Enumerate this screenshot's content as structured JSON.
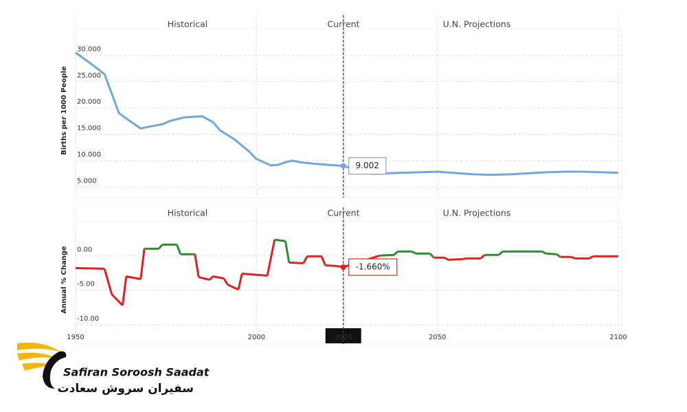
{
  "chart_data": [
    {
      "type": "line",
      "y_label": "Births per 1000 People",
      "sections": [
        "Historical",
        "Current",
        "U.N. Projections"
      ],
      "x": [
        1950,
        1955,
        1958,
        1962,
        1964,
        1968,
        1970,
        1974,
        1976,
        1980,
        1982,
        1985,
        1988,
        1990,
        1994,
        1998,
        2000,
        2004,
        2006,
        2008,
        2010,
        2012,
        2016,
        2020,
        2024,
        2032,
        2040,
        2050,
        2060,
        2065,
        2070,
        2080,
        2085,
        2090,
        2100
      ],
      "series": [
        {
          "name": "Births per 1000 People",
          "color": "#6fa8dc",
          "values": [
            30.5,
            28,
            26.4,
            19,
            18,
            16.1,
            16.4,
            16.9,
            17.5,
            18.2,
            18.3,
            18.4,
            17.3,
            15.7,
            14,
            11.7,
            10.3,
            9.1,
            9.2,
            9.7,
            10,
            9.7,
            9.4,
            9.2,
            9.002,
            7.5,
            7.7,
            7.9,
            7.4,
            7.3,
            7.4,
            7.8,
            7.9,
            7.9,
            7.7
          ]
        }
      ],
      "current_x": 2024,
      "annotation": "9.002",
      "xlim": [
        1950,
        2100
      ],
      "xticks": [
        1950,
        2000,
        2024,
        2050,
        2100
      ],
      "x_tick_labels": false,
      "ylim": [
        4,
        35
      ],
      "yticks": [
        {
          "value": 5,
          "label": "5.000"
        },
        {
          "value": 10,
          "label": "10.000"
        },
        {
          "value": 15,
          "label": "15.000"
        },
        {
          "value": 20,
          "label": "20.000"
        },
        {
          "value": 25,
          "label": "25.000"
        },
        {
          "value": 30,
          "label": "30.000"
        }
      ],
      "grid": true
    },
    {
      "type": "line",
      "y_label": "Annual % Change",
      "sections": [
        "Historical",
        "Current",
        "U.N. Projections"
      ],
      "x": [
        1950,
        1958,
        1960,
        1963,
        1964,
        1968,
        1969,
        1973,
        1974,
        1978,
        1979,
        1983,
        1984,
        1987,
        1988,
        1991,
        1992,
        1995,
        1996,
        2003,
        2005,
        2008,
        2009,
        2013,
        2014,
        2018,
        2019,
        2022,
        2024,
        2034,
        2038,
        2039,
        2043,
        2044,
        2048,
        2049,
        2052,
        2053,
        2057,
        2058,
        2062,
        2063,
        2067,
        2068,
        2079,
        2080,
        2083,
        2084,
        2087,
        2088,
        2092,
        2093,
        2100
      ],
      "series": [
        {
          "name": "Annual % Change",
          "positive_color": "#2e8b2e",
          "negative_color": "#e02020",
          "values": [
            -1.8,
            -1.9,
            -5.6,
            -7.2,
            -3,
            -3.4,
            1,
            1,
            1.6,
            1.6,
            0.2,
            0.2,
            -3.1,
            -3.5,
            -3,
            -3.3,
            -4.2,
            -4.9,
            -2.6,
            -2.9,
            2.3,
            2.1,
            -1,
            -1.1,
            -0.1,
            -0.1,
            -1.4,
            -1.5,
            -1.66,
            0,
            0.1,
            0.6,
            0.6,
            0.3,
            0.3,
            -0.3,
            -0.3,
            -0.6,
            -0.5,
            -0.4,
            -0.4,
            0.1,
            0.1,
            0.6,
            0.6,
            0.3,
            0.2,
            -0.2,
            -0.2,
            -0.4,
            -0.4,
            -0.1,
            -0.1
          ]
        }
      ],
      "current_x": 2024,
      "annotation": "-1.660%",
      "xlim": [
        1950,
        2100
      ],
      "xticks": [
        1950,
        2000,
        2024,
        2050,
        2100
      ],
      "x_tick_labels": true,
      "ylim": [
        -12,
        5
      ],
      "yticks": [
        {
          "value": -10,
          "label": "-10.00"
        },
        {
          "value": -5,
          "label": "-5.00"
        },
        {
          "value": 0,
          "label": "0.00"
        }
      ],
      "grid": true
    }
  ],
  "brand": {
    "name": "Safiran Soroosh Saadat",
    "name_fa": "سفیران سروش سعادت"
  }
}
